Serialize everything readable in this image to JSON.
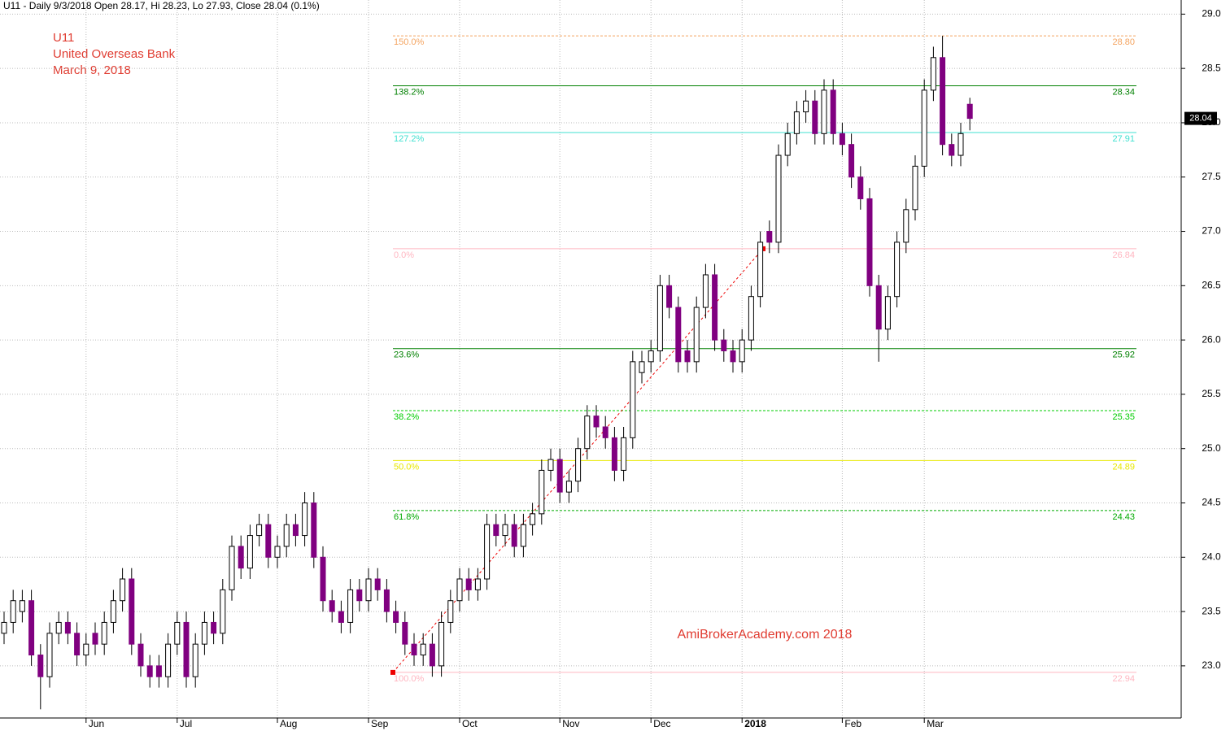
{
  "chart_data": {
    "type": "candlestick",
    "header": "U11 - Daily 9/3/2018 Open 28.17, Hi 28.23, Lo 27.93, Close 28.04 (0.1%)",
    "title_lines": [
      "U11",
      "United Overseas Bank",
      "March 9, 2018"
    ],
    "watermark": "AmiBrokerAcademy.com  2018",
    "categories": [
      null,
      null,
      null,
      null,
      null,
      null,
      null,
      null,
      null,
      "Jun",
      null,
      null,
      null,
      null,
      null,
      null,
      null,
      null,
      null,
      "Jul",
      null,
      null,
      null,
      null,
      null,
      null,
      null,
      null,
      null,
      null,
      "Aug",
      null,
      null,
      null,
      null,
      null,
      null,
      null,
      null,
      null,
      "Sep",
      null,
      null,
      null,
      null,
      null,
      null,
      null,
      null,
      null,
      "Oct",
      null,
      null,
      null,
      null,
      null,
      null,
      null,
      null,
      null,
      null,
      "Nov",
      null,
      null,
      null,
      null,
      null,
      null,
      null,
      null,
      null,
      "Dec",
      null,
      null,
      null,
      null,
      null,
      null,
      null,
      null,
      null,
      "2018",
      null,
      null,
      null,
      null,
      null,
      null,
      null,
      null,
      null,
      null,
      "Feb",
      null,
      null,
      null,
      null,
      null,
      null,
      null,
      null,
      "Mar",
      null,
      null,
      null,
      null,
      null
    ],
    "open": [
      23.3,
      23.4,
      23.5,
      23.6,
      23.1,
      22.9,
      23.3,
      23.4,
      23.3,
      23.1,
      23.3,
      23.2,
      23.4,
      23.6,
      23.8,
      23.2,
      23.0,
      23.0,
      22.9,
      23.2,
      23.4,
      22.9,
      23.2,
      23.4,
      23.3,
      23.7,
      24.1,
      23.9,
      24.2,
      24.3,
      24.0,
      24.1,
      24.3,
      24.2,
      24.5,
      24.0,
      23.6,
      23.5,
      23.4,
      23.7,
      23.6,
      23.8,
      23.7,
      23.5,
      23.4,
      23.2,
      23.1,
      23.2,
      23.0,
      23.4,
      23.6,
      23.8,
      23.7,
      23.8,
      24.3,
      24.2,
      24.3,
      24.1,
      24.3,
      24.4,
      24.8,
      24.9,
      24.6,
      24.7,
      25.0,
      25.3,
      25.2,
      25.1,
      24.8,
      25.1,
      25.7,
      25.8,
      25.9,
      26.5,
      26.3,
      25.9,
      25.8,
      26.3,
      26.6,
      26.0,
      25.9,
      25.8,
      26.0,
      26.4,
      27.0,
      26.9,
      27.7,
      27.9,
      28.1,
      28.2,
      27.9,
      28.3,
      27.9,
      27.8,
      27.5,
      27.3,
      26.5,
      26.1,
      26.4,
      26.9,
      27.2,
      27.6,
      28.3,
      28.6,
      27.8,
      27.7,
      28.17
    ],
    "high": [
      23.5,
      23.7,
      23.7,
      23.7,
      23.2,
      23.4,
      23.5,
      23.5,
      23.4,
      23.3,
      23.4,
      23.5,
      23.7,
      23.9,
      23.9,
      23.3,
      23.1,
      23.1,
      23.3,
      23.5,
      23.5,
      23.3,
      23.5,
      23.5,
      23.8,
      24.2,
      24.2,
      24.3,
      24.4,
      24.4,
      24.2,
      24.4,
      24.4,
      24.6,
      24.6,
      24.1,
      23.7,
      23.6,
      23.8,
      23.8,
      23.9,
      23.9,
      23.8,
      23.6,
      23.5,
      23.3,
      23.3,
      23.3,
      23.5,
      23.7,
      23.9,
      23.9,
      23.9,
      24.4,
      24.4,
      24.4,
      24.4,
      24.4,
      24.5,
      24.9,
      25.0,
      25.0,
      24.8,
      25.1,
      25.4,
      25.4,
      25.3,
      25.2,
      25.2,
      25.9,
      25.9,
      26.0,
      26.6,
      26.6,
      26.4,
      26.0,
      26.4,
      26.7,
      26.7,
      26.1,
      26.0,
      26.1,
      26.5,
      27.0,
      27.1,
      27.8,
      28.0,
      28.2,
      28.3,
      28.3,
      28.4,
      28.4,
      28.0,
      27.9,
      27.6,
      27.4,
      26.6,
      26.5,
      27.0,
      27.3,
      27.7,
      28.4,
      28.7,
      28.8,
      27.9,
      28.0,
      28.23
    ],
    "low": [
      23.2,
      23.3,
      23.4,
      23.0,
      22.6,
      22.8,
      23.2,
      23.2,
      23.0,
      23.0,
      23.1,
      23.1,
      23.3,
      23.5,
      23.1,
      22.9,
      22.8,
      22.8,
      22.8,
      23.1,
      22.8,
      22.8,
      23.1,
      23.2,
      23.2,
      23.6,
      23.8,
      23.8,
      24.1,
      23.9,
      23.9,
      24.0,
      24.1,
      24.1,
      23.9,
      23.5,
      23.4,
      23.3,
      23.3,
      23.5,
      23.5,
      23.6,
      23.4,
      23.3,
      23.1,
      23.0,
      23.0,
      22.9,
      22.9,
      23.3,
      23.5,
      23.6,
      23.6,
      23.7,
      24.1,
      24.1,
      24.0,
      24.0,
      24.2,
      24.3,
      24.7,
      24.5,
      24.5,
      24.6,
      24.9,
      25.1,
      25.0,
      24.7,
      24.7,
      25.0,
      25.6,
      25.7,
      25.8,
      26.2,
      25.7,
      25.7,
      25.7,
      26.2,
      25.9,
      25.8,
      25.7,
      25.7,
      25.9,
      26.3,
      26.8,
      26.8,
      27.6,
      27.8,
      28.0,
      27.8,
      27.8,
      27.8,
      27.7,
      27.4,
      27.2,
      26.4,
      25.8,
      26.0,
      26.3,
      26.8,
      27.1,
      27.5,
      28.2,
      27.7,
      27.6,
      27.6,
      27.93
    ],
    "close": [
      23.4,
      23.6,
      23.6,
      23.1,
      22.9,
      23.3,
      23.4,
      23.3,
      23.1,
      23.2,
      23.2,
      23.4,
      23.6,
      23.8,
      23.2,
      23.0,
      22.9,
      22.9,
      23.2,
      23.4,
      22.9,
      23.2,
      23.4,
      23.3,
      23.7,
      24.1,
      23.9,
      24.2,
      24.3,
      24.0,
      24.1,
      24.3,
      24.2,
      24.5,
      24.0,
      23.6,
      23.5,
      23.4,
      23.7,
      23.6,
      23.8,
      23.7,
      23.5,
      23.4,
      23.2,
      23.1,
      23.2,
      23.0,
      23.4,
      23.6,
      23.8,
      23.7,
      23.8,
      24.3,
      24.2,
      24.3,
      24.1,
      24.3,
      24.4,
      24.8,
      24.9,
      24.6,
      24.7,
      25.0,
      25.3,
      25.2,
      25.1,
      24.8,
      25.1,
      25.8,
      25.8,
      25.9,
      26.5,
      26.3,
      25.8,
      25.8,
      26.3,
      26.6,
      26.0,
      25.9,
      25.8,
      26.0,
      26.4,
      26.9,
      26.9,
      27.7,
      27.9,
      28.1,
      28.2,
      27.9,
      28.3,
      27.9,
      27.8,
      27.5,
      27.3,
      26.5,
      26.1,
      26.4,
      26.9,
      27.2,
      27.6,
      28.3,
      28.6,
      27.8,
      27.7,
      27.9,
      28.04
    ],
    "up_color": "#ffffff",
    "down_color": "#800080",
    "fib_levels": {
      "labels": [
        "150.0%",
        "138.2%",
        "127.2%",
        "0.0%",
        "23.6%",
        "38.2%",
        "50.0%",
        "61.8%",
        "100.0%"
      ],
      "values": [
        28.8,
        28.34,
        27.91,
        26.84,
        25.92,
        25.35,
        24.89,
        24.43,
        22.94
      ],
      "value_labels": [
        "28.80",
        "28.34",
        "27.91",
        "26.84",
        "25.92",
        "25.35",
        "24.89",
        "24.43",
        "22.94"
      ],
      "colors": [
        "#f4a460",
        "#008000",
        "#40e0d0",
        "#ffb6c1",
        "#008000",
        "#00cc00",
        "#e8e800",
        "#00aa00",
        "#ffb6c1"
      ],
      "dashed": [
        true,
        false,
        false,
        false,
        false,
        true,
        false,
        true,
        false
      ]
    },
    "last_price": 28.04,
    "ylim": [
      22.52,
      29.13
    ],
    "yticks": [
      {
        "value": 23,
        "label": "23.0"
      },
      23.5,
      {
        "value": 24,
        "label": "24.0"
      },
      24.5,
      {
        "value": 25,
        "label": "25.0"
      },
      25.5,
      {
        "value": 26,
        "label": "26.0"
      },
      26.5,
      {
        "value": 27,
        "label": "27.0"
      },
      27.5,
      {
        "value": 28,
        "label": "28.0"
      },
      28.5,
      {
        "value": 29,
        "label": "29.0"
      }
    ],
    "grid": true
  }
}
